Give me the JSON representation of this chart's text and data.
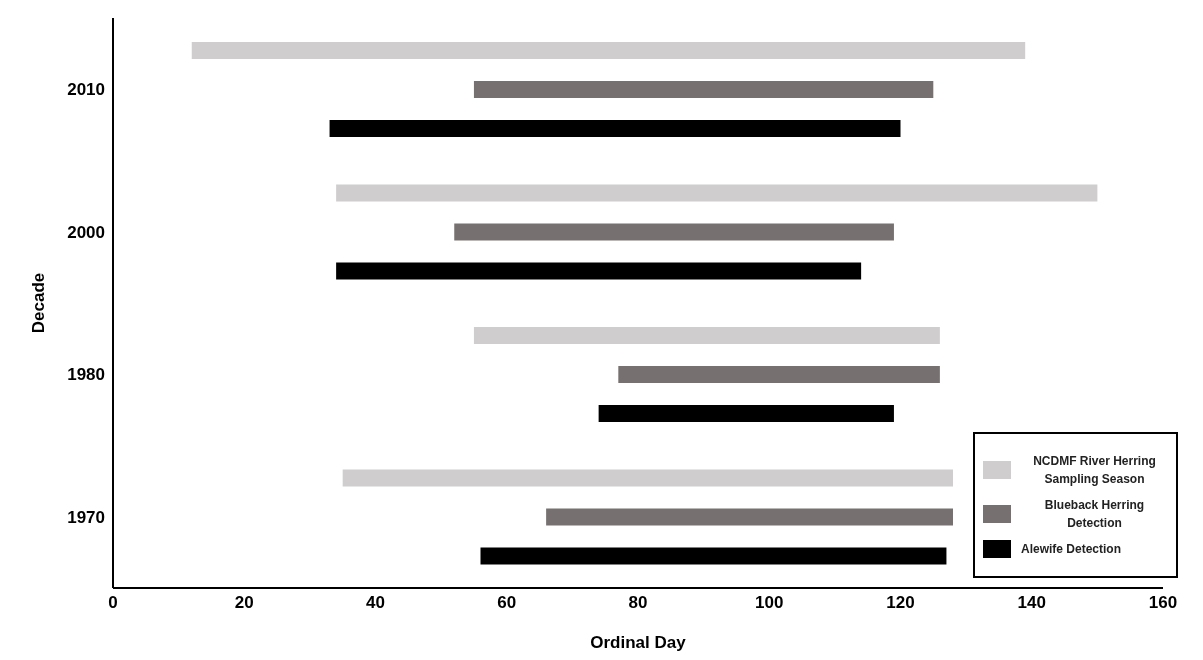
{
  "chart_data": {
    "type": "bar",
    "orientation": "horizontal",
    "xlabel": "Ordinal Day",
    "ylabel": "Decade",
    "categories": [
      "2010",
      "2000",
      "1980",
      "1970"
    ],
    "series": [
      {
        "name": "NCDMF River Herring Sampling Season",
        "color": "#cfcdcd",
        "base": [
          12,
          34,
          55,
          35
        ],
        "values": [
          127,
          116,
          71,
          93
        ]
      },
      {
        "name": "Blueback Herring Detection",
        "color": "#767070",
        "base": [
          55,
          52,
          77,
          66
        ],
        "values": [
          70,
          67,
          49,
          62
        ]
      },
      {
        "name": "Alewife Detection",
        "color": "#000000",
        "base": [
          33,
          34,
          74,
          56
        ],
        "values": [
          87,
          80,
          45,
          71
        ]
      }
    ],
    "xlim": [
      0,
      160
    ],
    "xticks": [
      0,
      20,
      40,
      60,
      80,
      100,
      120,
      140,
      160
    ],
    "grid": false,
    "legend": "bottom right"
  }
}
